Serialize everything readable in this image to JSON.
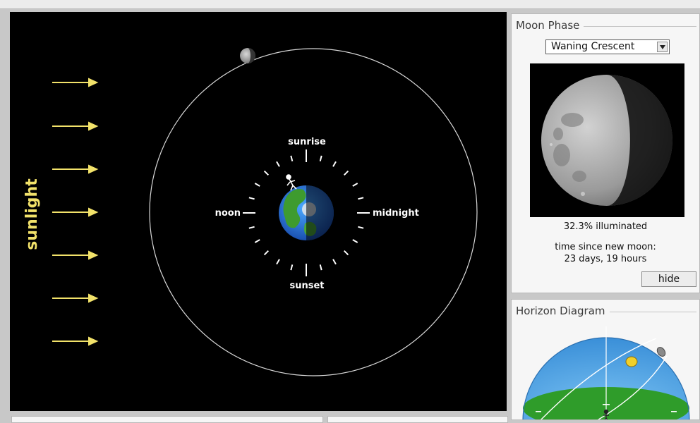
{
  "simulation": {
    "sunlight_label": "sunlight",
    "time_labels": {
      "sunrise": "sunrise",
      "noon": "noon",
      "midnight": "midnight",
      "sunset": "sunset"
    }
  },
  "moon_phase_panel": {
    "title": "Moon Phase",
    "phase_select_value": "Waning Crescent",
    "illuminated_text": "32.3% illuminated",
    "time_since_label": "time since new moon:",
    "time_since_value": "23 days, 19 hours",
    "hide_button_label": "hide",
    "illuminated_fraction": 0.323
  },
  "horizon_panel": {
    "title": "Horizon Diagram"
  },
  "colors": {
    "sunlight": "#f2e26a",
    "space": "#000000",
    "sky_dome": "#4aa0e6",
    "ground": "#2f9c2a",
    "panel_bg": "#f6f6f6"
  }
}
